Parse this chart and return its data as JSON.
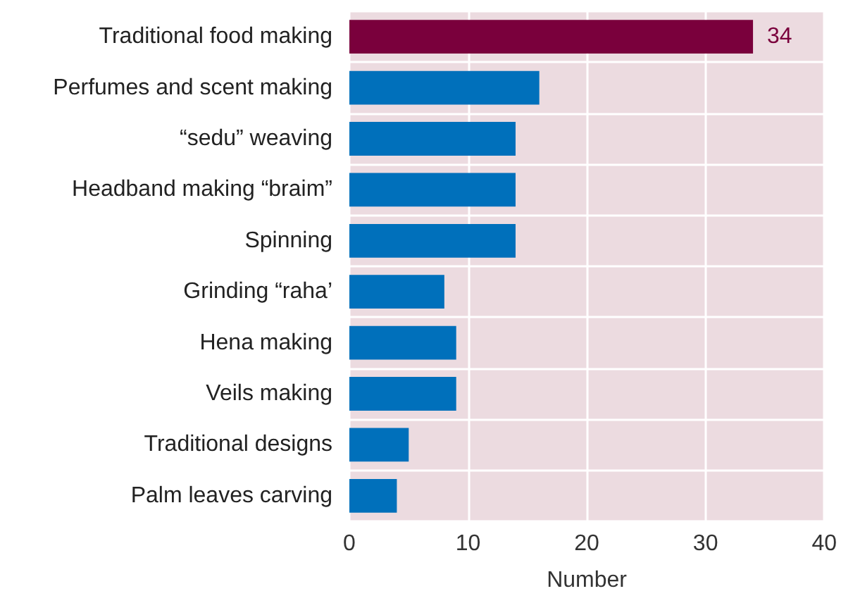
{
  "chart_data": {
    "type": "bar",
    "orientation": "horizontal",
    "xlabel": "Number",
    "categories": [
      "Traditional food making",
      "Perfumes and scent making",
      "“sedu” weaving",
      "Headband making “braim”",
      "Spinning",
      "Grinding “raha’",
      "Hena making",
      "Veils making",
      "Traditional designs",
      "Palm leaves carving"
    ],
    "values": [
      34,
      16,
      14,
      14,
      14,
      8,
      9,
      9,
      5,
      4
    ],
    "colors": [
      "#7a003c",
      "#0070bb",
      "#0070bb",
      "#0070bb",
      "#0070bb",
      "#0070bb",
      "#0070bb",
      "#0070bb",
      "#0070bb",
      "#0070bb"
    ],
    "value_labels": [
      "34",
      null,
      null,
      null,
      null,
      null,
      null,
      null,
      null,
      null
    ],
    "xlim": [
      0,
      40
    ],
    "xticks": [
      0,
      10,
      20,
      30,
      40
    ],
    "grid": true
  }
}
